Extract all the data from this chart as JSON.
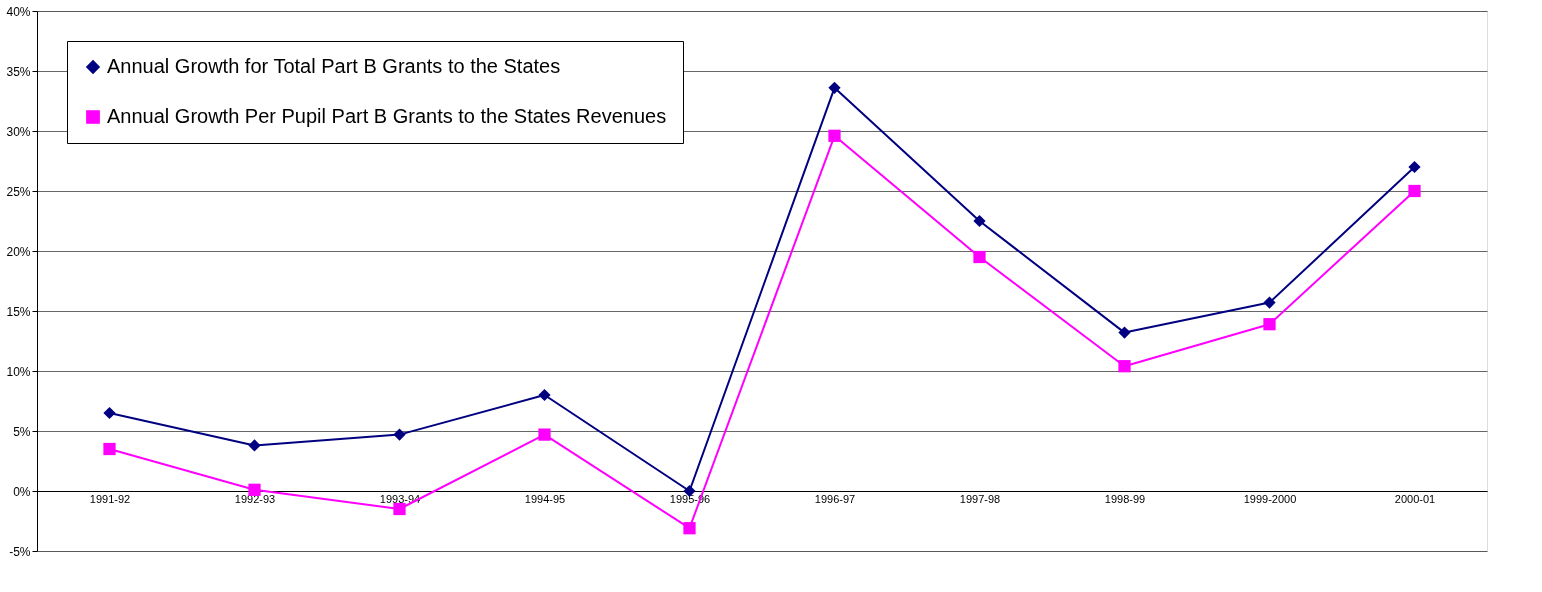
{
  "chart_data": {
    "type": "line",
    "categories": [
      "1991-92",
      "1992-93",
      "1993-94",
      "1994-95",
      "1995-96",
      "1996-97",
      "1997-98",
      "1998-99",
      "1999-2000",
      "2000-01"
    ],
    "series": [
      {
        "name": "Annual Growth for Total Part B Grants to the States",
        "color": "#000080",
        "marker": "diamond",
        "values": [
          6.5,
          3.8,
          4.7,
          8.0,
          0.0,
          33.6,
          22.5,
          13.2,
          15.7,
          27.0
        ]
      },
      {
        "name": "Annual Growth Per Pupil Part B Grants to the States Revenues",
        "color": "#ff00ff",
        "marker": "square",
        "values": [
          3.5,
          0.1,
          -1.5,
          4.7,
          -3.1,
          29.6,
          19.5,
          10.4,
          13.9,
          25.0
        ]
      }
    ],
    "ylim": [
      -5,
      40
    ],
    "yticks": [
      {
        "value": -5,
        "label": "-5%"
      },
      {
        "value": 0,
        "label": "0%"
      },
      {
        "value": 5,
        "label": "5%"
      },
      {
        "value": 10,
        "label": "10%"
      },
      {
        "value": 15,
        "label": "15%"
      },
      {
        "value": 20,
        "label": "20%"
      },
      {
        "value": 25,
        "label": "25%"
      },
      {
        "value": 30,
        "label": "30%"
      },
      {
        "value": 35,
        "label": "35%"
      },
      {
        "value": 40,
        "label": "40%"
      }
    ],
    "grid": "y",
    "legend": "top left",
    "line_style": "solid"
  }
}
